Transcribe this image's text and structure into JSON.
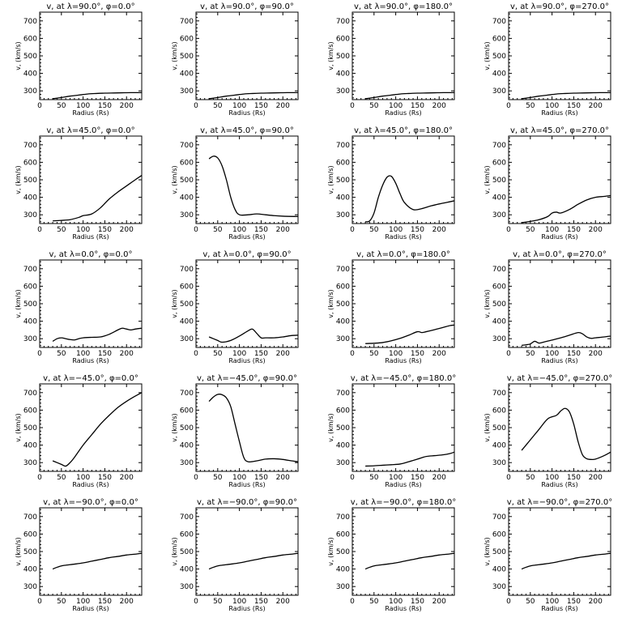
{
  "chart_data": [
    {
      "type": "line",
      "title": "v, at λ=90.0°, φ=0.0°",
      "xlabel": "Radius (Rs)",
      "ylabel": "v, (km/s)",
      "xlim": [
        0,
        235
      ],
      "ylim": [
        250,
        750
      ],
      "x": [
        30,
        50,
        70,
        90,
        110,
        130,
        150,
        170,
        190,
        210,
        235
      ],
      "y": [
        255,
        262,
        270,
        276,
        282,
        285,
        287,
        288,
        289,
        290,
        290
      ]
    },
    {
      "type": "line",
      "title": "v, at λ=90.0°, φ=90.0°",
      "xlabel": "Radius (Rs)",
      "ylabel": "v, (km/s)",
      "xlim": [
        0,
        235
      ],
      "ylim": [
        250,
        750
      ],
      "x": [
        30,
        50,
        70,
        90,
        110,
        130,
        150,
        170,
        190,
        210,
        235
      ],
      "y": [
        255,
        262,
        270,
        276,
        282,
        285,
        287,
        288,
        289,
        290,
        290
      ]
    },
    {
      "type": "line",
      "title": "v, at λ=90.0°, φ=180.0°",
      "xlabel": "Radius (Rs)",
      "ylabel": "v, (km/s)",
      "xlim": [
        0,
        235
      ],
      "ylim": [
        250,
        750
      ],
      "x": [
        30,
        50,
        70,
        90,
        110,
        130,
        150,
        170,
        190,
        210,
        235
      ],
      "y": [
        255,
        262,
        270,
        276,
        282,
        285,
        287,
        288,
        289,
        290,
        290
      ]
    },
    {
      "type": "line",
      "title": "v, at λ=90.0°, φ=270.0°",
      "xlabel": "Radius (Rs)",
      "ylabel": "v, (km/s)",
      "xlim": [
        0,
        235
      ],
      "ylim": [
        250,
        750
      ],
      "x": [
        30,
        50,
        70,
        90,
        110,
        130,
        150,
        170,
        190,
        210,
        235
      ],
      "y": [
        255,
        262,
        270,
        276,
        282,
        285,
        287,
        288,
        289,
        290,
        290
      ]
    },
    {
      "type": "line",
      "title": "v, at λ=45.0°, φ=0.0°",
      "xlabel": "Radius (Rs)",
      "ylabel": "v, (km/s)",
      "xlim": [
        0,
        235
      ],
      "ylim": [
        250,
        750
      ],
      "x": [
        30,
        50,
        70,
        90,
        100,
        120,
        140,
        160,
        180,
        200,
        220,
        235
      ],
      "y": [
        265,
        268,
        272,
        285,
        295,
        305,
        340,
        390,
        430,
        465,
        500,
        525
      ]
    },
    {
      "type": "line",
      "title": "v, at λ=45.0°, φ=90.0°",
      "xlabel": "Radius (Rs)",
      "ylabel": "v, (km/s)",
      "xlim": [
        0,
        235
      ],
      "ylim": [
        250,
        750
      ],
      "x": [
        30,
        40,
        50,
        60,
        70,
        80,
        90,
        100,
        120,
        140,
        160,
        180,
        200,
        235
      ],
      "y": [
        620,
        635,
        625,
        580,
        500,
        400,
        330,
        300,
        300,
        305,
        300,
        295,
        292,
        290
      ]
    },
    {
      "type": "line",
      "title": "v, at λ=45.0°, φ=180.0°",
      "xlabel": "Radius (Rs)",
      "ylabel": "v, (km/s)",
      "xlim": [
        0,
        235
      ],
      "ylim": [
        250,
        750
      ],
      "x": [
        30,
        40,
        50,
        60,
        70,
        80,
        90,
        100,
        110,
        120,
        140,
        160,
        180,
        200,
        220,
        235
      ],
      "y": [
        260,
        265,
        310,
        400,
        470,
        515,
        520,
        480,
        420,
        370,
        330,
        335,
        350,
        362,
        372,
        380
      ]
    },
    {
      "type": "line",
      "title": "v, at λ=45.0°, φ=270.0°",
      "xlabel": "Radius (Rs)",
      "ylabel": "v, (km/s)",
      "xlim": [
        0,
        235
      ],
      "ylim": [
        250,
        750
      ],
      "x": [
        30,
        50,
        70,
        90,
        100,
        110,
        120,
        140,
        160,
        180,
        200,
        220,
        235
      ],
      "y": [
        255,
        262,
        272,
        290,
        310,
        315,
        310,
        330,
        360,
        385,
        400,
        405,
        410
      ]
    },
    {
      "type": "line",
      "title": "v, at λ=0.0°, φ=0.0°",
      "xlabel": "Radius (Rs)",
      "ylabel": "v, (km/s)",
      "xlim": [
        0,
        235
      ],
      "ylim": [
        250,
        750
      ],
      "x": [
        30,
        40,
        50,
        60,
        70,
        80,
        90,
        100,
        120,
        140,
        160,
        180,
        190,
        200,
        210,
        220,
        235
      ],
      "y": [
        285,
        300,
        305,
        300,
        295,
        293,
        300,
        305,
        308,
        310,
        325,
        350,
        360,
        355,
        350,
        355,
        360
      ]
    },
    {
      "type": "line",
      "title": "v, at λ=0.0°, φ=90.0°",
      "xlabel": "Radius (Rs)",
      "ylabel": "v, (km/s)",
      "xlim": [
        0,
        235
      ],
      "ylim": [
        250,
        750
      ],
      "x": [
        30,
        40,
        50,
        60,
        80,
        100,
        120,
        130,
        140,
        150,
        160,
        180,
        200,
        220,
        235
      ],
      "y": [
        310,
        300,
        290,
        280,
        290,
        315,
        345,
        355,
        330,
        305,
        305,
        305,
        310,
        318,
        320
      ]
    },
    {
      "type": "line",
      "title": "v, at λ=0.0°, φ=180.0°",
      "xlabel": "Radius (Rs)",
      "ylabel": "v, (km/s)",
      "xlim": [
        0,
        235
      ],
      "ylim": [
        250,
        750
      ],
      "x": [
        30,
        50,
        70,
        90,
        110,
        130,
        150,
        160,
        170,
        190,
        210,
        225,
        235
      ],
      "y": [
        272,
        274,
        278,
        288,
        302,
        320,
        340,
        335,
        340,
        352,
        365,
        375,
        378
      ]
    },
    {
      "type": "line",
      "title": "v, at λ=0.0°, φ=270.0°",
      "xlabel": "Radius (Rs)",
      "ylabel": "v, (km/s)",
      "xlim": [
        0,
        235
      ],
      "ylim": [
        250,
        750
      ],
      "x": [
        30,
        40,
        50,
        60,
        70,
        80,
        100,
        120,
        140,
        160,
        170,
        180,
        190,
        200,
        220,
        235
      ],
      "y": [
        262,
        265,
        270,
        285,
        275,
        280,
        292,
        305,
        320,
        335,
        328,
        310,
        302,
        305,
        310,
        315
      ]
    },
    {
      "type": "line",
      "title": "v, at λ=−45.0°, φ=0.0°",
      "xlabel": "Radius (Rs)",
      "ylabel": "v, (km/s)",
      "xlim": [
        0,
        235
      ],
      "ylim": [
        250,
        750
      ],
      "x": [
        30,
        40,
        50,
        60,
        70,
        80,
        100,
        120,
        140,
        160,
        180,
        200,
        220,
        235
      ],
      "y": [
        310,
        300,
        290,
        280,
        300,
        330,
        400,
        460,
        520,
        570,
        615,
        650,
        680,
        700
      ]
    },
    {
      "type": "line",
      "title": "v, at λ=−45.0°, φ=90.0°",
      "xlabel": "Radius (Rs)",
      "ylabel": "v, (km/s)",
      "xlim": [
        0,
        235
      ],
      "ylim": [
        250,
        750
      ],
      "x": [
        30,
        40,
        50,
        60,
        70,
        80,
        90,
        100,
        110,
        120,
        140,
        160,
        180,
        200,
        220,
        235
      ],
      "y": [
        650,
        675,
        690,
        688,
        670,
        620,
        520,
        420,
        330,
        305,
        310,
        320,
        322,
        318,
        310,
        305
      ]
    },
    {
      "type": "line",
      "title": "v, at λ=−45.0°, φ=180.0°",
      "xlabel": "Radius (Rs)",
      "ylabel": "v, (km/s)",
      "xlim": [
        0,
        235
      ],
      "ylim": [
        250,
        750
      ],
      "x": [
        30,
        50,
        70,
        90,
        110,
        130,
        150,
        170,
        190,
        210,
        225,
        235
      ],
      "y": [
        280,
        282,
        285,
        288,
        292,
        305,
        320,
        335,
        340,
        345,
        352,
        360
      ]
    },
    {
      "type": "line",
      "title": "v, at λ=−45.0°, φ=270.0°",
      "xlabel": "Radius (Rs)",
      "ylabel": "v, (km/s)",
      "xlim": [
        0,
        235
      ],
      "ylim": [
        250,
        750
      ],
      "x": [
        30,
        50,
        70,
        90,
        110,
        120,
        130,
        140,
        150,
        160,
        170,
        180,
        190,
        200,
        220,
        235
      ],
      "y": [
        370,
        430,
        490,
        550,
        570,
        595,
        610,
        590,
        520,
        420,
        345,
        322,
        318,
        320,
        340,
        360
      ]
    },
    {
      "type": "line",
      "title": "v, at λ=−90.0°, φ=0.0°",
      "xlabel": "Radius (Rs)",
      "ylabel": "v, (km/s)",
      "xlim": [
        0,
        235
      ],
      "ylim": [
        250,
        750
      ],
      "x": [
        30,
        40,
        50,
        60,
        80,
        100,
        120,
        140,
        160,
        180,
        200,
        220,
        235
      ],
      "y": [
        400,
        410,
        418,
        422,
        428,
        435,
        445,
        455,
        465,
        472,
        480,
        485,
        490
      ]
    },
    {
      "type": "line",
      "title": "v, at λ=−90.0°, φ=90.0°",
      "xlabel": "Radius (Rs)",
      "ylabel": "v, (km/s)",
      "xlim": [
        0,
        235
      ],
      "ylim": [
        250,
        750
      ],
      "x": [
        30,
        40,
        50,
        60,
        80,
        100,
        120,
        140,
        160,
        180,
        200,
        220,
        235
      ],
      "y": [
        400,
        410,
        418,
        422,
        428,
        435,
        445,
        455,
        465,
        472,
        480,
        485,
        490
      ]
    },
    {
      "type": "line",
      "title": "v, at λ=−90.0°, φ=180.0°",
      "xlabel": "Radius (Rs)",
      "ylabel": "v, (km/s)",
      "xlim": [
        0,
        235
      ],
      "ylim": [
        250,
        750
      ],
      "x": [
        30,
        40,
        50,
        60,
        80,
        100,
        120,
        140,
        160,
        180,
        200,
        220,
        235
      ],
      "y": [
        400,
        410,
        418,
        422,
        428,
        435,
        445,
        455,
        465,
        472,
        480,
        485,
        490
      ]
    },
    {
      "type": "line",
      "title": "v, at λ=−90.0°, φ=270.0°",
      "xlabel": "Radius (Rs)",
      "ylabel": "v, (km/s)",
      "xlim": [
        0,
        235
      ],
      "ylim": [
        250,
        750
      ],
      "x": [
        30,
        40,
        50,
        60,
        80,
        100,
        120,
        140,
        160,
        180,
        200,
        220,
        235
      ],
      "y": [
        400,
        410,
        418,
        422,
        428,
        435,
        445,
        455,
        465,
        472,
        480,
        485,
        490
      ]
    }
  ],
  "axes": {
    "xticks": [
      0,
      50,
      100,
      150,
      200
    ],
    "yticks": [
      300,
      400,
      500,
      600,
      700
    ]
  }
}
